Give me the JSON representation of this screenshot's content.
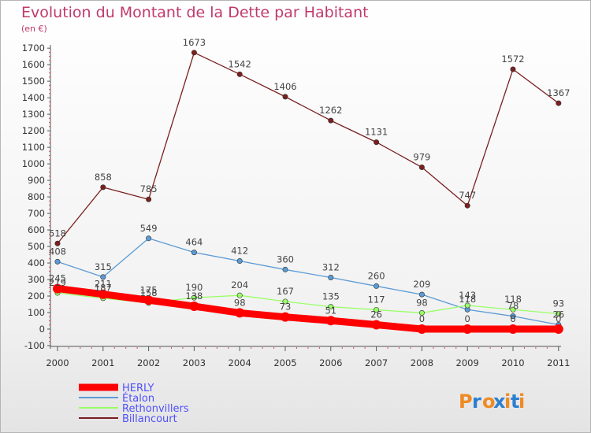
{
  "chart_data": {
    "type": "line",
    "title": "Evolution du Montant de la Dette par Habitant",
    "subtitle": "(en €)",
    "xlabel": "",
    "ylabel": "",
    "x": [
      "2000",
      "2001",
      "2002",
      "2003",
      "2004",
      "2005",
      "2006",
      "2007",
      "2008",
      "2009",
      "2010",
      "2011"
    ],
    "ylim": [
      -100,
      1700
    ],
    "yticks": [
      -100,
      0,
      100,
      200,
      300,
      400,
      500,
      600,
      700,
      800,
      900,
      1000,
      1100,
      1200,
      1300,
      1400,
      1500,
      1600,
      1700
    ],
    "grid": false,
    "legend_position": "bottom-left",
    "series": [
      {
        "name": "HERLY",
        "color": "#ff0000",
        "values": [
          245,
          211,
          175,
          138,
          98,
          73,
          51,
          26,
          0,
          0,
          0,
          0
        ],
        "labels": [
          "245",
          "211",
          "175",
          "138",
          "98",
          "73",
          "51",
          "26",
          "0",
          "0",
          "0",
          "0"
        ]
      },
      {
        "name": "Etalon",
        "color": "#5b9bd5",
        "values": [
          408,
          315,
          549,
          464,
          412,
          360,
          312,
          260,
          209,
          118,
          78,
          26
        ],
        "labels": [
          "408",
          "315",
          "549",
          "464",
          "412",
          "360",
          "312",
          "260",
          "209",
          "118",
          "78",
          "26"
        ]
      },
      {
        "name": "Rethonvillers",
        "color": "#99ff66",
        "values": [
          219,
          187,
          158,
          190,
          204,
          167,
          135,
          117,
          98,
          143,
          118,
          93
        ],
        "labels": [
          "219",
          "187",
          "158",
          "190",
          "204",
          "167",
          "135",
          "117",
          "98",
          "143",
          "118",
          "93"
        ]
      },
      {
        "name": "Billancourt",
        "color": "#7b1f1f",
        "values": [
          518,
          858,
          785,
          1673,
          1542,
          1406,
          1262,
          1131,
          979,
          747,
          1572,
          1367
        ],
        "labels": [
          "518",
          "858",
          "785",
          "1673",
          "1542",
          "1406",
          "1262",
          "1131",
          "979",
          "747",
          "1572",
          "1367"
        ]
      }
    ]
  },
  "legend": {
    "items": [
      {
        "name": "HERLY",
        "color": "#ff0000"
      },
      {
        "name": "Étalon",
        "color": "#5b9bd5"
      },
      {
        "name": "Rethonvillers",
        "color": "#99ff66"
      },
      {
        "name": "Billancourt",
        "color": "#7b1f1f"
      }
    ]
  },
  "brand": {
    "name": "Proxiti",
    "colors": {
      "P": "#f08a24",
      "r": "#2b7fd0",
      "o": "#f08a24",
      "x": "#2b7fd0",
      "i": "#f08a24",
      "t": "#2b7fd0",
      "i2": "#f08a24"
    }
  },
  "colors": {
    "title": "#c0396b",
    "axis_text": "#333333",
    "point_label": "#444444"
  }
}
